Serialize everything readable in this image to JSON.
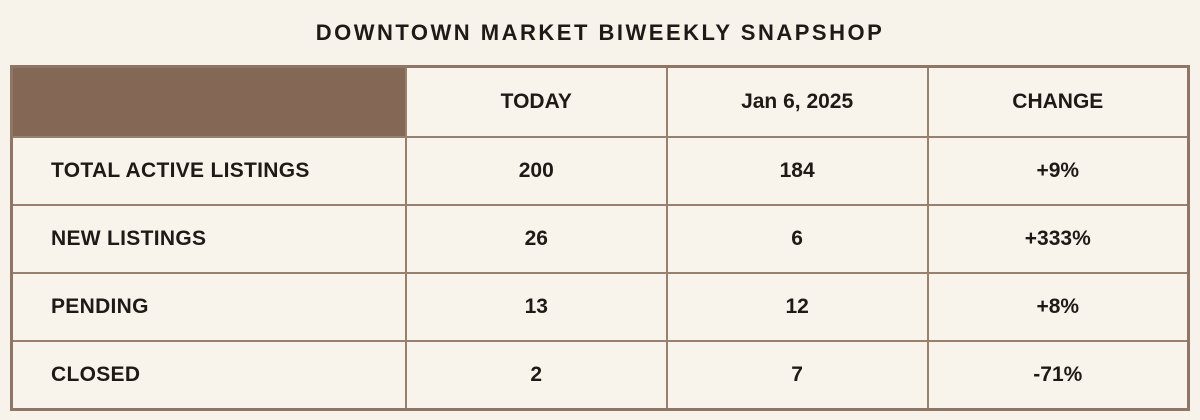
{
  "page": {
    "background_color": "#f7f3ea",
    "accent_color": "#846755",
    "border_color": "#97806e",
    "text_color": "#1e1b17"
  },
  "title": "DOWNTOWN MARKET BIWEEKLY SNAPSHOP",
  "table": {
    "columns": [
      "",
      "TODAY",
      "Jan 6, 2025",
      "CHANGE"
    ],
    "rows": [
      {
        "label": "TOTAL ACTIVE LISTINGS",
        "today": "200",
        "previous": "184",
        "change": "+9%"
      },
      {
        "label": "NEW LISTINGS",
        "today": "26",
        "previous": "6",
        "change": "+333%"
      },
      {
        "label": "PENDING",
        "today": "13",
        "previous": "12",
        "change": "+8%"
      },
      {
        "label": "CLOSED",
        "today": "2",
        "previous": "7",
        "change": "-71%"
      }
    ]
  },
  "chart_data": {
    "type": "table",
    "title": "DOWNTOWN MARKET BIWEEKLY SNAPSHOP",
    "columns": [
      "",
      "TODAY",
      "Jan 6, 2025",
      "CHANGE"
    ],
    "categories": [
      "TOTAL ACTIVE LISTINGS",
      "NEW LISTINGS",
      "PENDING",
      "CLOSED"
    ],
    "series": [
      {
        "name": "TODAY",
        "values": [
          200,
          26,
          13,
          2
        ]
      },
      {
        "name": "Jan 6, 2025",
        "values": [
          184,
          6,
          12,
          7
        ]
      },
      {
        "name": "CHANGE",
        "values": [
          "+9%",
          "+333%",
          "+8%",
          "-71%"
        ]
      }
    ]
  }
}
